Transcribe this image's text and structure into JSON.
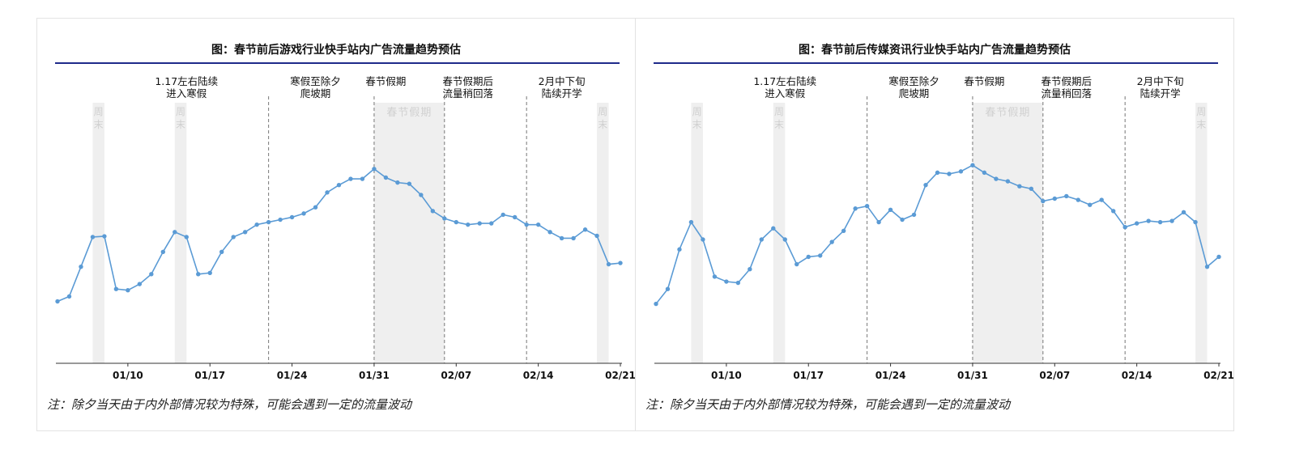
{
  "charts": [
    {
      "title": "图：春节前后游戏行业快手站内广告流量趋势预估",
      "note": "注：除夕当天由于内外部情况较为特殊，可能会遇到一定的流量波动",
      "chart_data": {
        "type": "line",
        "title": "图：春节前后游戏行业快手站内广告流量趋势预估",
        "xlabel": "",
        "ylabel": "",
        "x_start": "01/04",
        "x_end": "02/21",
        "tick_labels": [
          "01/10",
          "01/17",
          "01/24",
          "01/31",
          "02/07",
          "02/14",
          "02/21"
        ],
        "tick_dates": [
          "01/10",
          "01/17",
          "01/24",
          "01/31",
          "02/07",
          "02/14",
          "02/21"
        ],
        "ylim": [
          0,
          100
        ],
        "y_axis_visible": false,
        "grid": false,
        "legend": "none",
        "line_color": "#5b9bd5",
        "values": [
          25,
          27,
          39,
          51,
          51.3,
          30,
          29.5,
          32,
          36,
          45,
          53,
          51,
          36,
          36.5,
          45,
          51,
          53,
          56,
          57,
          58,
          59,
          60.5,
          63,
          69,
          72,
          74.5,
          74.5,
          78.5,
          75,
          73,
          72.5,
          68,
          61.5,
          58.5,
          57,
          56,
          56.5,
          56.5,
          60,
          59,
          56,
          56,
          53,
          50.5,
          50.5,
          54,
          51.5,
          40,
          40.5
        ],
        "weekend_bands": [
          [
            "01/07",
            "01/08"
          ],
          [
            "01/14",
            "01/15"
          ],
          [
            "02/19",
            "02/20"
          ]
        ],
        "weekend_label": "周末",
        "holiday_band": [
          "01/31",
          "02/06"
        ],
        "holiday_label": "春节假期",
        "phase_dividers": [
          "01/22",
          "01/31",
          "02/06",
          "02/13"
        ],
        "phase_labels": [
          {
            "lines": [
              "1.17左右陆续",
              "进入寒假"
            ],
            "date": "01/15"
          },
          {
            "lines": [
              "寒假至除夕",
              "爬坡期"
            ],
            "date": "01/26"
          },
          {
            "lines": [
              "春节假期"
            ],
            "date": "02/01"
          },
          {
            "lines": [
              "春节假期后",
              "流量稍回落"
            ],
            "date": "02/08"
          },
          {
            "lines": [
              "2月中下旬",
              "陆续开学"
            ],
            "date": "02/16"
          }
        ]
      }
    },
    {
      "title": "图：春节前后传媒资讯行业快手站内广告流量趋势预估",
      "note": "注：除夕当天由于内外部情况较为特殊，可能会遇到一定的流量波动",
      "chart_data": {
        "type": "line",
        "title": "图：春节前后传媒资讯行业快手站内广告流量趋势预估",
        "xlabel": "",
        "ylabel": "",
        "x_start": "01/04",
        "x_end": "02/21",
        "tick_labels": [
          "01/10",
          "01/17",
          "01/24",
          "01/31",
          "02/07",
          "02/14",
          "02/21"
        ],
        "tick_dates": [
          "01/10",
          "01/17",
          "01/24",
          "01/31",
          "02/07",
          "02/14",
          "02/21"
        ],
        "ylim": [
          0,
          100
        ],
        "y_axis_visible": false,
        "grid": false,
        "legend": "none",
        "line_color": "#5b9bd5",
        "values": [
          24,
          30,
          46,
          57,
          50,
          35,
          33,
          32.5,
          38,
          50,
          54.5,
          50,
          40,
          43,
          43.5,
          49,
          53.5,
          62.5,
          63.5,
          57,
          62,
          58,
          60,
          72,
          77,
          76.5,
          77.5,
          80,
          77,
          74.5,
          73.5,
          71.5,
          70.5,
          65.5,
          66.5,
          67.5,
          66,
          64,
          66,
          61.5,
          55,
          56.5,
          57.5,
          57,
          57.5,
          61,
          57,
          39,
          43
        ],
        "weekend_bands": [
          [
            "01/07",
            "01/08"
          ],
          [
            "01/14",
            "01/15"
          ],
          [
            "02/19",
            "02/20"
          ]
        ],
        "weekend_label": "周末",
        "holiday_band": [
          "01/31",
          "02/06"
        ],
        "holiday_label": "春节假期",
        "phase_dividers": [
          "01/22",
          "01/31",
          "02/06",
          "02/13"
        ],
        "phase_labels": [
          {
            "lines": [
              "1.17左右陆续",
              "进入寒假"
            ],
            "date": "01/15"
          },
          {
            "lines": [
              "寒假至除夕",
              "爬坡期"
            ],
            "date": "01/26"
          },
          {
            "lines": [
              "春节假期"
            ],
            "date": "02/01"
          },
          {
            "lines": [
              "春节假期后",
              "流量稍回落"
            ],
            "date": "02/08"
          },
          {
            "lines": [
              "2月中下旬",
              "陆续开学"
            ],
            "date": "02/16"
          }
        ]
      }
    }
  ]
}
